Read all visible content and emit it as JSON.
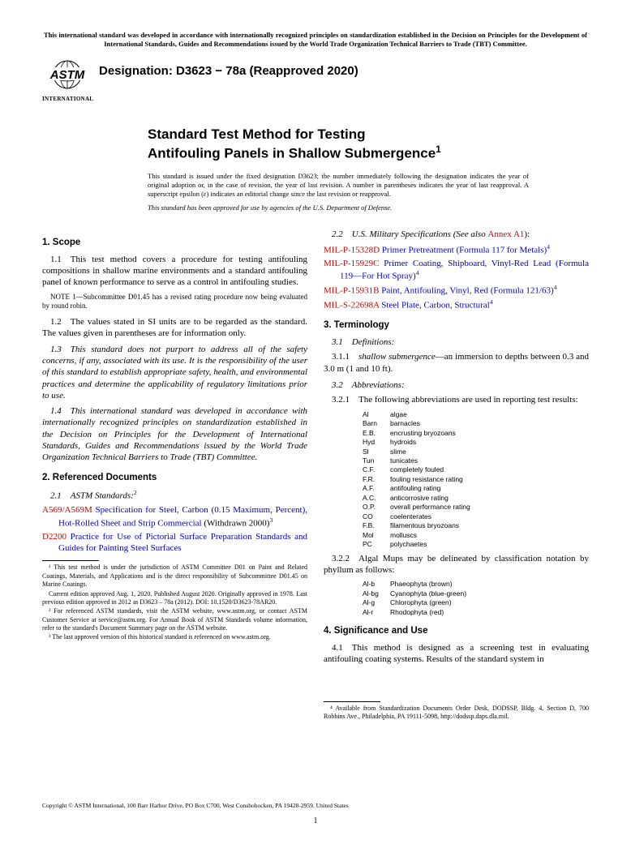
{
  "top_notice": "This international standard was developed in accordance with internationally recognized principles on standardization established in the Decision on Principles for the Development of International Standards, Guides and Recommendations issued by the World Trade Organization Technical Barriers to Trade (TBT) Committee.",
  "logo": {
    "label": "INTERNATIONAL"
  },
  "designation": "Designation: D3623 − 78a (Reapproved 2020)",
  "title_line1": "Standard Test Method for Testing",
  "title_line2": "Antifouling Panels in Shallow Submergence",
  "title_sup": "1",
  "issue_note": "This standard is issued under the fixed designation D3623; the number immediately following the designation indicates the year of original adoption or, in the case of revision, the year of last revision. A number in parentheses indicates the year of last reapproval. A superscript epsilon (ε) indicates an editorial change since the last revision or reapproval.",
  "approval_note": "This standard has been approved for use by agencies of the U.S. Department of Defense.",
  "left": {
    "scope_head": "1. Scope",
    "p1_1": "1.1 This test method covers a procedure for testing antifouling compositions in shallow marine environments and a standard antifouling panel of known performance to serve as a control in antifouling studies.",
    "note1": "NOTE 1—Subcommittee D01.45 has a revised rating procedure now being evaluated by round robin.",
    "p1_2": "1.2 The values stated in SI units are to be regarded as the standard. The values given in parentheses are for information only.",
    "p1_3": "1.3 This standard does not purport to address all of the safety concerns, if any, associated with its use. It is the responsibility of the user of this standard to establish appropriate safety, health, and environmental practices and determine the applicability of regulatory limitations prior to use.",
    "p1_4": "1.4 This international standard was developed in accordance with internationally recognized principles on standardization established in the Decision on Principles for the Development of International Standards, Guides and Recommendations issued by the World Trade Organization Technical Barriers to Trade (TBT) Committee.",
    "ref_head": "2. Referenced Documents",
    "sub2_1": "2.1 ASTM Standards:",
    "sup2": "2",
    "a569_code": "A569/A569M",
    "a569_text": " Specification for Steel, Carbon (0.15 Maximum, Percent), Hot-Rolled Sheet and Strip Commercial",
    "a569_withdrawn": " (Withdrawn 2000)",
    "sup3": "3",
    "d2200_code": "D2200",
    "d2200_text": " Practice for Use of Pictorial Surface Preparation Standards and Guides for Painting Steel Surfaces",
    "fn1": "¹ This test method is under the jurisdiction of ASTM Committee D01 on Paint and Related Coatings, Materials, and Applications and is the direct responsibility of Subcommittee D01.45 on Marine Coatings.",
    "fn1b": "Current edition approved Aug. 1, 2020. Published August 2020. Originally approved in 1978. Last previous edition approved in 2012 as D3623 – 78a (2012). DOI: 10.1520/D3623-78AR20.",
    "fn2": "² For referenced ASTM standards, visit the ASTM website, www.astm.org, or contact ASTM Customer Service at service@astm.org. For Annual Book of ASTM Standards volume information, refer to the standard's Document Summary page on the ASTM website.",
    "fn3": "³ The last approved version of this historical standard is referenced on www.astm.org."
  },
  "right": {
    "sub2_2a": "2.2 U.S. Military Specifications (See also ",
    "sub2_2b": "Annex A1",
    "sub2_2c": "):",
    "mil1_code": "MIL-P-15328D",
    "mil1_text": " Primer Pretreatment (Formula 117 for Metals)",
    "mil2_code": "MIL-P-15929C",
    "mil2_text": " Primer Coating, Shipboard, Vinyl-Red Lead (Formula 119—For Hot Spray)",
    "mil3_code": "MIL-P-15931B",
    "mil3_text": " Paint, Antifouling, Vinyl, Red (Formula 121/63)",
    "mil4_code": "MIL-S-22698A",
    "mil4_text": " Steel Plate, Carbon, Structural",
    "sup4": "4",
    "term_head": "3. Terminology",
    "sub3_1": "3.1 Definitions:",
    "p3_1_1a": "3.1.1 ",
    "p3_1_1b": "shallow submergence",
    "p3_1_1c": "—an immersion to depths between 0.3 and 3.0 m (1 and 10 ft).",
    "sub3_2": "3.2 Abbreviations:",
    "p3_2_1": "3.2.1 The following abbreviations are used in reporting test results:",
    "abbrs": [
      {
        "k": "Al",
        "v": "algae"
      },
      {
        "k": "Barn",
        "v": "barnacles"
      },
      {
        "k": "E.B.",
        "v": "encrusting bryozoans"
      },
      {
        "k": "Hyd",
        "v": "hydroids"
      },
      {
        "k": "Sl",
        "v": "slime"
      },
      {
        "k": "Tun",
        "v": "tunicates"
      },
      {
        "k": "C.F.",
        "v": "completely fouled"
      },
      {
        "k": "F.R.",
        "v": "fouling resistance rating"
      },
      {
        "k": "A.F.",
        "v": "antifouling rating"
      },
      {
        "k": "A.C.",
        "v": "anticorrosive rating"
      },
      {
        "k": "O.P.",
        "v": "overall performance rating"
      },
      {
        "k": "CO",
        "v": "coelenterates"
      },
      {
        "k": "F.B.",
        "v": "filamentous bryozoans"
      },
      {
        "k": "Mol",
        "v": "molluscs"
      },
      {
        "k": "PC",
        "v": "polychaetes"
      }
    ],
    "p3_2_2": "3.2.2 Algal Mups may be delineated by classification notation by phyllum as follows:",
    "algae": [
      {
        "k": "Al-b",
        "v": "Phaeophyta (brown)"
      },
      {
        "k": "Al-bg",
        "v": "Cyanophyta (blue-green)"
      },
      {
        "k": "Al-g",
        "v": "Chlorophyta (green)"
      },
      {
        "k": "Al-r",
        "v": "Rhodophyta (red)"
      }
    ],
    "sig_head": "4. Significance and Use",
    "p4_1": "4.1 This method is designed as a screening test in evaluating antifouling coating systems. Results of the standard system in",
    "fn4": "⁴ Available from Standardization Documents Order Desk, DODSSP, Bldg. 4, Section D, 700 Robbins Ave., Philadelphia, PA 19111-5098, http://dodssp.daps.dla.mil."
  },
  "copyright": "Copyright © ASTM International, 100 Barr Harbor Drive, PO Box C700, West Conshohocken, PA 19428-2959. United States",
  "page_number": "1",
  "colors": {
    "link_red": "#cc0000",
    "link_blue": "#0000cc",
    "text": "#000000",
    "bg": "#ffffff"
  }
}
